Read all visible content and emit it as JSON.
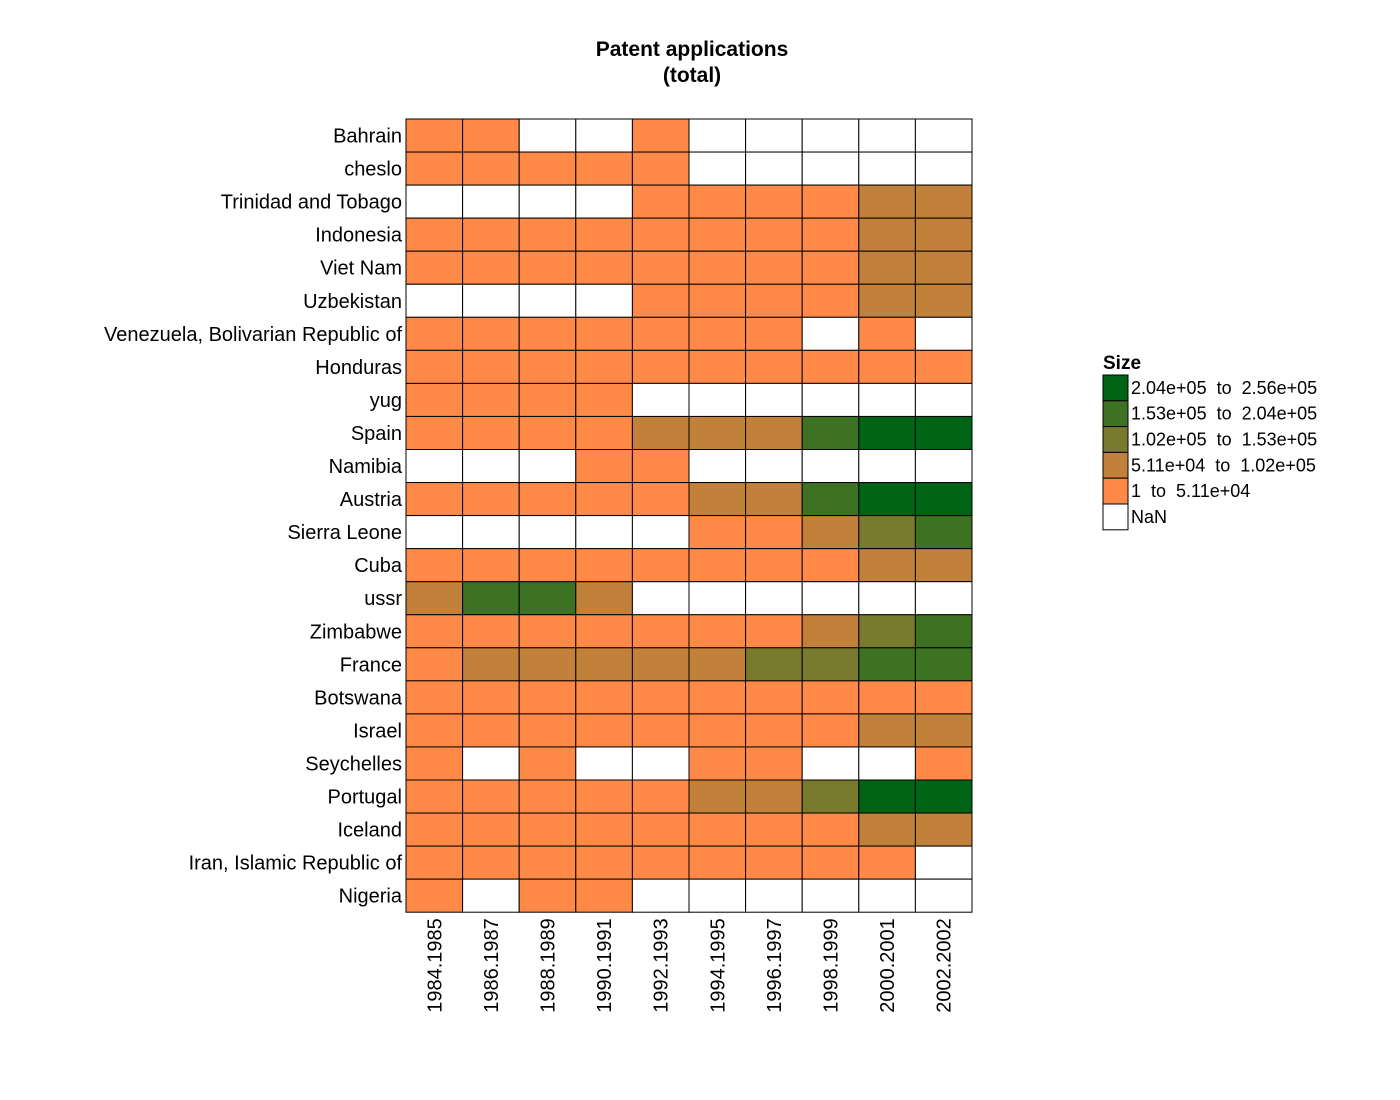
{
  "chart_data": {
    "type": "heatmap",
    "title": [
      "Patent applications",
      "(total)"
    ],
    "rows": [
      "Bahrain",
      "cheslo",
      "Trinidad and Tobago",
      "Indonesia",
      "Viet Nam",
      "Uzbekistan",
      "Venezuela, Bolivarian Republic of",
      "Honduras",
      "yug",
      "Spain",
      "Namibia",
      "Austria",
      "Sierra Leone",
      "Cuba",
      "ussr",
      "Zimbabwe",
      "France",
      "Botswana",
      "Israel",
      "Seychelles",
      "Portugal",
      "Iceland",
      "Iran, Islamic Republic of",
      "Nigeria"
    ],
    "columns": [
      "1984.1985",
      "1986.1987",
      "1988.1989",
      "1990.1991",
      "1992.1993",
      "1994.1995",
      "1996.1997",
      "1998.1999",
      "2000.2001",
      "2002.2002"
    ],
    "cell_class_note": "values are legend bin index: 0=NaN, 1..5 = bins from lowest to highest",
    "cells": [
      [
        1,
        1,
        0,
        0,
        1,
        0,
        0,
        0,
        0,
        0
      ],
      [
        1,
        1,
        1,
        1,
        1,
        0,
        0,
        0,
        0,
        0
      ],
      [
        0,
        0,
        0,
        0,
        1,
        1,
        1,
        1,
        2,
        2
      ],
      [
        1,
        1,
        1,
        1,
        1,
        1,
        1,
        1,
        2,
        2
      ],
      [
        1,
        1,
        1,
        1,
        1,
        1,
        1,
        1,
        2,
        2
      ],
      [
        0,
        0,
        0,
        0,
        1,
        1,
        1,
        1,
        2,
        2
      ],
      [
        1,
        1,
        1,
        1,
        1,
        1,
        1,
        0,
        1,
        0
      ],
      [
        1,
        1,
        1,
        1,
        1,
        1,
        1,
        1,
        1,
        1
      ],
      [
        1,
        1,
        1,
        1,
        0,
        0,
        0,
        0,
        0,
        0
      ],
      [
        1,
        1,
        1,
        1,
        2,
        2,
        2,
        4,
        5,
        5
      ],
      [
        0,
        0,
        0,
        1,
        1,
        0,
        0,
        0,
        0,
        0
      ],
      [
        1,
        1,
        1,
        1,
        1,
        2,
        2,
        4,
        5,
        5
      ],
      [
        0,
        0,
        0,
        0,
        0,
        1,
        1,
        2,
        3,
        4
      ],
      [
        1,
        1,
        1,
        1,
        1,
        1,
        1,
        1,
        2,
        2
      ],
      [
        2,
        4,
        4,
        2,
        0,
        0,
        0,
        0,
        0,
        0
      ],
      [
        1,
        1,
        1,
        1,
        1,
        1,
        1,
        2,
        3,
        4
      ],
      [
        1,
        2,
        2,
        2,
        2,
        2,
        3,
        3,
        4,
        4
      ],
      [
        1,
        1,
        1,
        1,
        1,
        1,
        1,
        1,
        1,
        1
      ],
      [
        1,
        1,
        1,
        1,
        1,
        1,
        1,
        1,
        2,
        2
      ],
      [
        1,
        0,
        1,
        0,
        0,
        1,
        1,
        0,
        0,
        1
      ],
      [
        1,
        1,
        1,
        1,
        1,
        2,
        2,
        3,
        5,
        5
      ],
      [
        1,
        1,
        1,
        1,
        1,
        1,
        1,
        1,
        2,
        2
      ],
      [
        1,
        1,
        1,
        1,
        1,
        1,
        1,
        1,
        1,
        0
      ],
      [
        1,
        0,
        1,
        1,
        0,
        0,
        0,
        0,
        0,
        0
      ]
    ],
    "legend": {
      "title": "Size",
      "entries": [
        {
          "label": "2.04e+05  to  2.56e+05",
          "color": "#006414"
        },
        {
          "label": "1.53e+05  to  2.04e+05",
          "color": "#3c7222"
        },
        {
          "label": "1.02e+05  to  1.53e+05",
          "color": "#7a7a2e"
        },
        {
          "label": "5.11e+04  to  1.02e+05",
          "color": "#c1813a"
        },
        {
          "label": "1  to  5.11e+04",
          "color": "#ff8a48"
        },
        {
          "label": "NaN",
          "color": "#ffffff"
        }
      ]
    },
    "bin_colors": [
      "#ffffff",
      "#ff8a48",
      "#c1813a",
      "#7a7a2e",
      "#3c7222",
      "#006414"
    ],
    "legend_placement": "right"
  }
}
